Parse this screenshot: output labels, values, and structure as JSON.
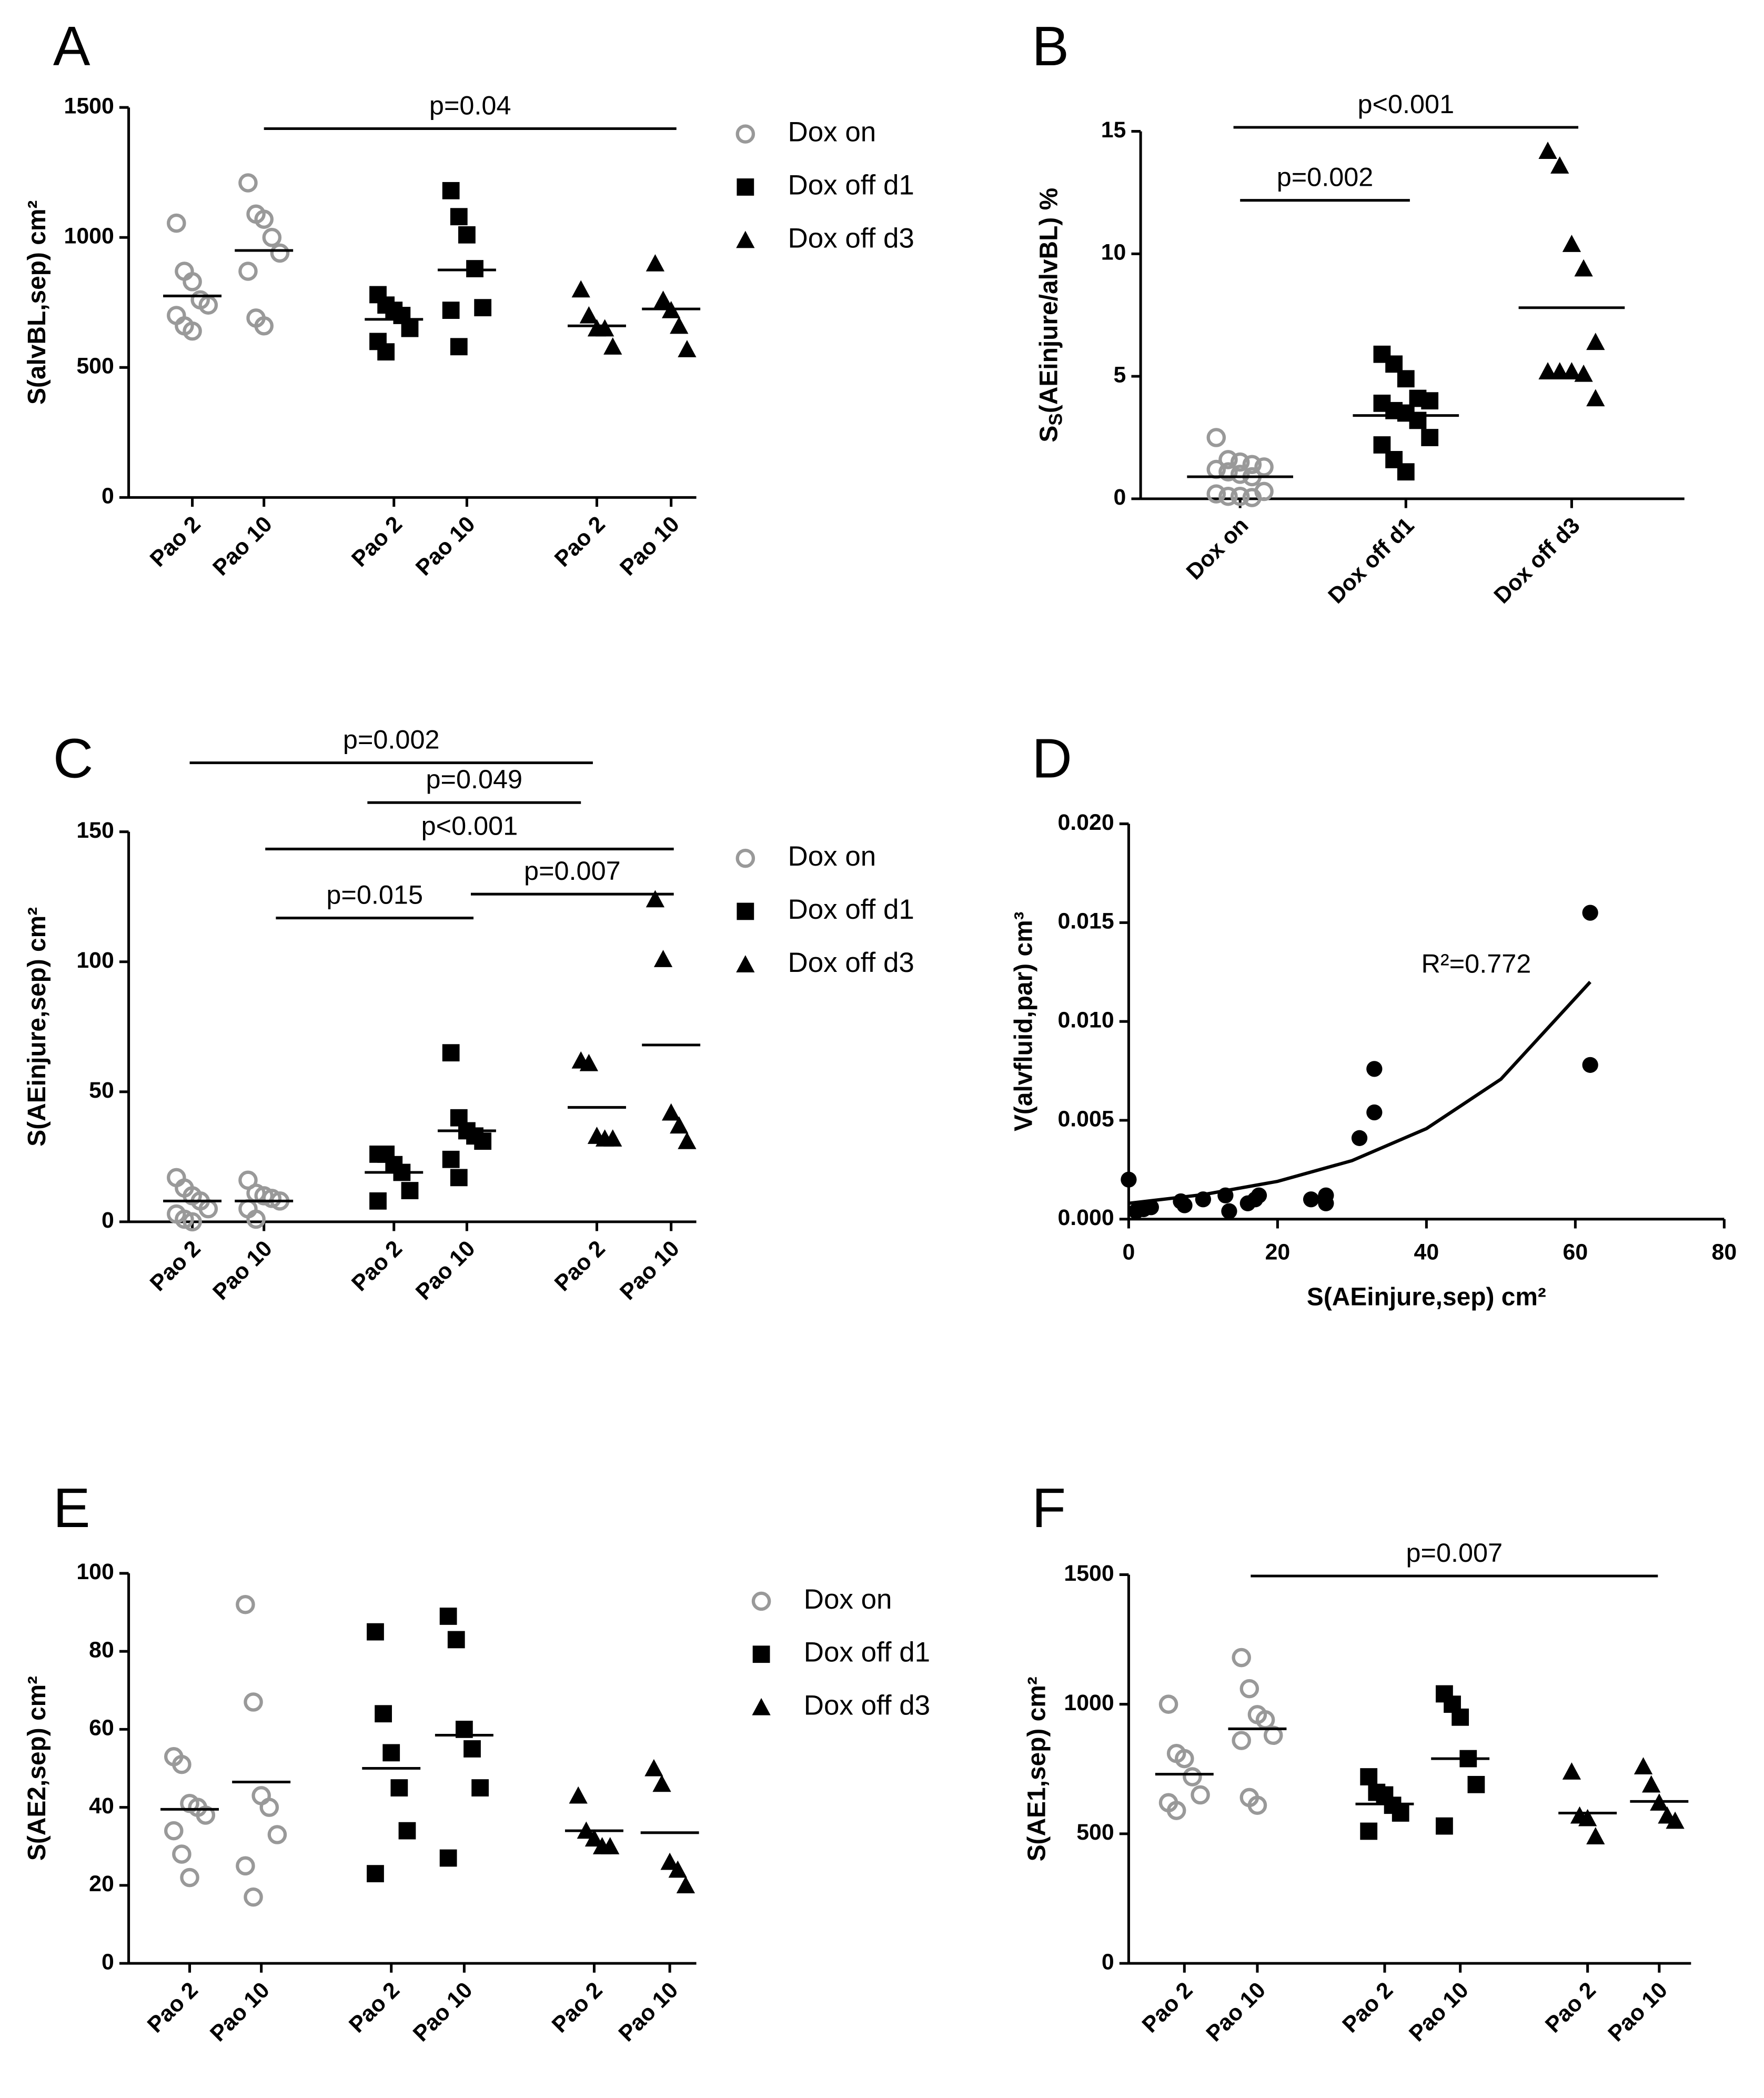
{
  "chart_data": [
    {
      "type": "dot",
      "panel": "A",
      "ylabel": "S(alvBL,sep) cm²",
      "ylim": [
        0,
        1500
      ],
      "yticks": [
        0,
        500,
        1000,
        1500
      ],
      "legend": true,
      "categories": [
        "Pao 2",
        "Pao 10",
        "Pao 2",
        "Pao 10",
        "Pao 2",
        "Pao 10"
      ],
      "series": [
        {
          "name": "Dox on",
          "color": "#999999",
          "marker": "circle-open",
          "values": [
            [
              1055,
              870,
              830,
              760,
              740,
              700,
              660,
              640
            ],
            [
              1210,
              1090,
              1070,
              1000,
              940,
              870,
              690,
              660
            ],
            null,
            null,
            null,
            null
          ],
          "means": [
            775,
            950,
            null,
            null,
            null,
            null
          ]
        },
        {
          "name": "Dox off d1",
          "color": "#000000",
          "marker": "square",
          "values": [
            null,
            null,
            [
              780,
              740,
              720,
              700,
              650,
              600,
              560
            ],
            [
              1180,
              1080,
              1010,
              880,
              730,
              720,
              580
            ],
            null,
            null
          ],
          "means": [
            null,
            null,
            685,
            875,
            null,
            null
          ]
        },
        {
          "name": "Dox off d3",
          "color": "#000000",
          "marker": "triangle",
          "values": [
            null,
            null,
            null,
            null,
            [
              800,
              700,
              650,
              650,
              580
            ],
            [
              900,
              760,
              720,
              660,
              570
            ]
          ],
          "means": [
            null,
            null,
            null,
            null,
            660,
            725
          ]
        }
      ],
      "annotations": [
        "p=0.04"
      ]
    },
    {
      "type": "dot",
      "panel": "B",
      "ylabel": {
        "main": "S",
        "sub": "S",
        "rest": "(AEinjure/alvBL) %"
      },
      "ylim": [
        0,
        15
      ],
      "yticks": [
        0,
        5,
        10,
        15
      ],
      "legend": false,
      "categories": [
        "Dox on",
        "Dox off d1",
        "Dox off d3"
      ],
      "series": [
        {
          "name": "Dox on",
          "color": "#999999",
          "marker": "circle-open",
          "values": [
            [
              2.5,
              1.6,
              1.5,
              1.4,
              1.3,
              1.2,
              1.1,
              1.0,
              0.9,
              0.3,
              0.2,
              0.1,
              0.1,
              0.05
            ],
            null,
            null
          ],
          "means": [
            0.9,
            null,
            null
          ]
        },
        {
          "name": "Dox off d1",
          "color": "#000000",
          "marker": "square",
          "values": [
            null,
            [
              5.9,
              5.5,
              4.9,
              4.1,
              4.0,
              3.9,
              3.6,
              3.5,
              3.2,
              2.5,
              2.2,
              1.6,
              1.1
            ],
            null
          ],
          "means": [
            null,
            3.4,
            null
          ]
        },
        {
          "name": "Dox off d3",
          "color": "#000000",
          "marker": "triangle",
          "values": [
            null,
            null,
            [
              14.2,
              13.6,
              10.4,
              9.4,
              6.4,
              5.2,
              5.2,
              5.2,
              5.1,
              4.1
            ]
          ],
          "means": [
            null,
            null,
            7.8
          ]
        }
      ],
      "annotations": [
        "p<0.001",
        "p=0.002"
      ]
    },
    {
      "type": "dot",
      "panel": "C",
      "ylabel": "S(AEinjure,sep) cm²",
      "ylim": [
        0,
        150
      ],
      "yticks": [
        0,
        50,
        100,
        150
      ],
      "legend": true,
      "categories": [
        "Pao 2",
        "Pao 10",
        "Pao 2",
        "Pao 10",
        "Pao 2",
        "Pao 10"
      ],
      "series": [
        {
          "name": "Dox on",
          "color": "#999999",
          "marker": "circle-open",
          "values": [
            [
              17,
              13,
              10,
              8,
              5,
              3,
              1,
              0
            ],
            [
              16,
              11,
              10,
              9,
              8,
              5,
              1
            ],
            null,
            null,
            null,
            null
          ],
          "means": [
            8,
            8,
            null,
            null,
            null,
            null
          ]
        },
        {
          "name": "Dox off d1",
          "color": "#000000",
          "marker": "square",
          "values": [
            null,
            null,
            [
              26,
              26,
              22,
              19,
              12,
              8
            ],
            [
              65,
              40,
              35,
              33,
              31,
              24,
              17
            ],
            null,
            null
          ],
          "means": [
            null,
            null,
            19,
            35,
            null,
            null
          ]
        },
        {
          "name": "Dox off d3",
          "color": "#000000",
          "marker": "triangle",
          "values": [
            null,
            null,
            null,
            null,
            [
              62,
              61,
              33,
              32,
              32
            ],
            [
              124,
              101,
              42,
              37,
              31
            ]
          ],
          "means": [
            null,
            null,
            null,
            null,
            44,
            68
          ]
        }
      ],
      "annotations": [
        "p=0.002",
        "p=0.049",
        "p<0.001",
        "p=0.007",
        "p=0.015"
      ]
    },
    {
      "type": "scatter",
      "panel": "D",
      "xlabel": "S(AEinjure,sep) cm²",
      "ylabel": "V(alvfluid,par) cm³",
      "xlim": [
        0,
        80
      ],
      "xticks": [
        0,
        20,
        40,
        60,
        80
      ],
      "ylim": [
        0,
        0.02
      ],
      "yticks": [
        {
          "value": 0,
          "label": "0.000"
        },
        {
          "value": 0.005,
          "label": "0.005"
        },
        {
          "value": 0.01,
          "label": "0.010"
        },
        {
          "value": 0.015,
          "label": "0.015"
        },
        {
          "value": 0.02,
          "label": "0.020"
        }
      ],
      "color": "#000000",
      "x": [
        0,
        1,
        2,
        3,
        7,
        7.5,
        10,
        13,
        13.5,
        16,
        17,
        17.5,
        24.5,
        26.5,
        26.5,
        31,
        33,
        33,
        62,
        62
      ],
      "y": [
        0.002,
        0.0004,
        0.0005,
        0.0006,
        0.0009,
        0.0007,
        0.001,
        0.0012,
        0.0004,
        0.0008,
        0.001,
        0.0012,
        0.001,
        0.0012,
        0.0008,
        0.0041,
        0.0054,
        0.0076,
        0.0155,
        0.0078
      ],
      "fit": {
        "x": [
          0,
          10,
          20,
          30,
          40,
          50,
          62
        ],
        "y": [
          0.0008,
          0.00124,
          0.00191,
          0.00296,
          0.00458,
          0.00708,
          0.012
        ]
      },
      "annotations": [
        "R²=0.772"
      ]
    },
    {
      "type": "dot",
      "panel": "E",
      "ylabel": "S(AE2,sep) cm²",
      "ylim": [
        0,
        100
      ],
      "yticks": [
        0,
        20,
        40,
        60,
        80,
        100
      ],
      "legend": true,
      "categories": [
        "Pao 2",
        "Pao 10",
        "Pao 2",
        "Pao 10",
        "Pao 2",
        "Pao 10"
      ],
      "series": [
        {
          "name": "Dox on",
          "color": "#999999",
          "marker": "circle-open",
          "values": [
            [
              53,
              51,
              41,
              40,
              38,
              34,
              28,
              22
            ],
            [
              92,
              67,
              43,
              40,
              33,
              25,
              17
            ],
            null,
            null,
            null,
            null
          ],
          "means": [
            39.5,
            46.5,
            null,
            null,
            null,
            null
          ]
        },
        {
          "name": "Dox off d1",
          "color": "#000000",
          "marker": "square",
          "values": [
            null,
            null,
            [
              85,
              64,
              54,
              45,
              34,
              23
            ],
            [
              89,
              83,
              60,
              55,
              45,
              27
            ],
            null,
            null
          ],
          "means": [
            null,
            null,
            50,
            58.5,
            null,
            null
          ]
        },
        {
          "name": "Dox off d3",
          "color": "#000000",
          "marker": "triangle",
          "values": [
            null,
            null,
            null,
            null,
            [
              43,
              34,
              32,
              30,
              30
            ],
            [
              50,
              46,
              26,
              24,
              20
            ]
          ],
          "means": [
            null,
            null,
            null,
            null,
            34,
            33.5
          ]
        }
      ],
      "annotations": []
    },
    {
      "type": "dot",
      "panel": "F",
      "ylabel": "S(AE1,sep) cm²",
      "ylim": [
        0,
        1500
      ],
      "yticks": [
        0,
        500,
        1000,
        1500
      ],
      "legend": false,
      "categories": [
        "Pao 2",
        "Pao 10",
        "Pao 2",
        "Pao 10",
        "Pao 2",
        "Pao 10"
      ],
      "series": [
        {
          "name": "Dox on",
          "color": "#999999",
          "marker": "circle-open",
          "values": [
            [
              1000,
              810,
              790,
              720,
              650,
              620,
              590
            ],
            [
              1180,
              1060,
              960,
              940,
              880,
              860,
              640,
              610
            ],
            null,
            null,
            null,
            null
          ],
          "means": [
            730,
            905,
            null,
            null,
            null,
            null
          ]
        },
        {
          "name": "Dox off d1",
          "color": "#000000",
          "marker": "square",
          "values": [
            null,
            null,
            [
              720,
              660,
              650,
              610,
              580,
              510
            ],
            [
              1040,
              1000,
              950,
              790,
              690,
              530
            ],
            null,
            null
          ],
          "means": [
            null,
            null,
            615,
            790,
            null,
            null
          ]
        },
        {
          "name": "Dox off d3",
          "color": "#000000",
          "marker": "triangle",
          "values": [
            null,
            null,
            null,
            null,
            [
              740,
              570,
              560,
              490
            ],
            [
              760,
              690,
              620,
              570,
              550
            ]
          ],
          "means": [
            null,
            null,
            null,
            null,
            580,
            625
          ]
        }
      ],
      "annotations": [
        "p=0.007"
      ]
    }
  ]
}
